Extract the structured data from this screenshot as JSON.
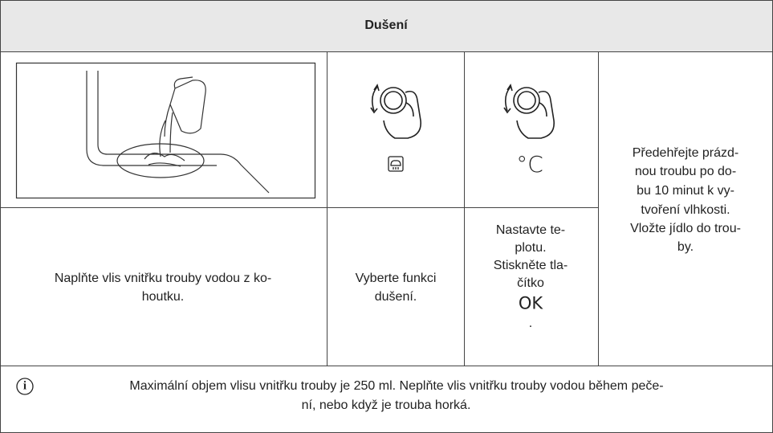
{
  "header": {
    "title": "Dušení"
  },
  "steps": [
    {
      "text_lines": [
        "Naplňte vlis vnitřku trouby vodou z ko-",
        "houtku."
      ]
    },
    {
      "text_lines": [
        "Vyberte funkci",
        "dušení."
      ]
    },
    {
      "symbol": "°C",
      "text_lines": [
        "Nastavte te-",
        "plotu.",
        "Stiskněte tla-",
        "čítko",
        "OK",
        "."
      ]
    },
    {
      "text_lines": [
        "Předehřejte prázd-",
        "nou troubu po do-",
        "bu 10 minut k vy-",
        "tvoření vlhkosti.",
        "Vložte jídlo do trou-",
        "by."
      ]
    }
  ],
  "note": {
    "icon": "i",
    "text_lines": [
      "Maximální objem vlisu vnitřku trouby je 250 ml. Neplňte vlis vnitřku trouby vodou během peče-",
      "ní, nebo když je trouba horká."
    ]
  }
}
